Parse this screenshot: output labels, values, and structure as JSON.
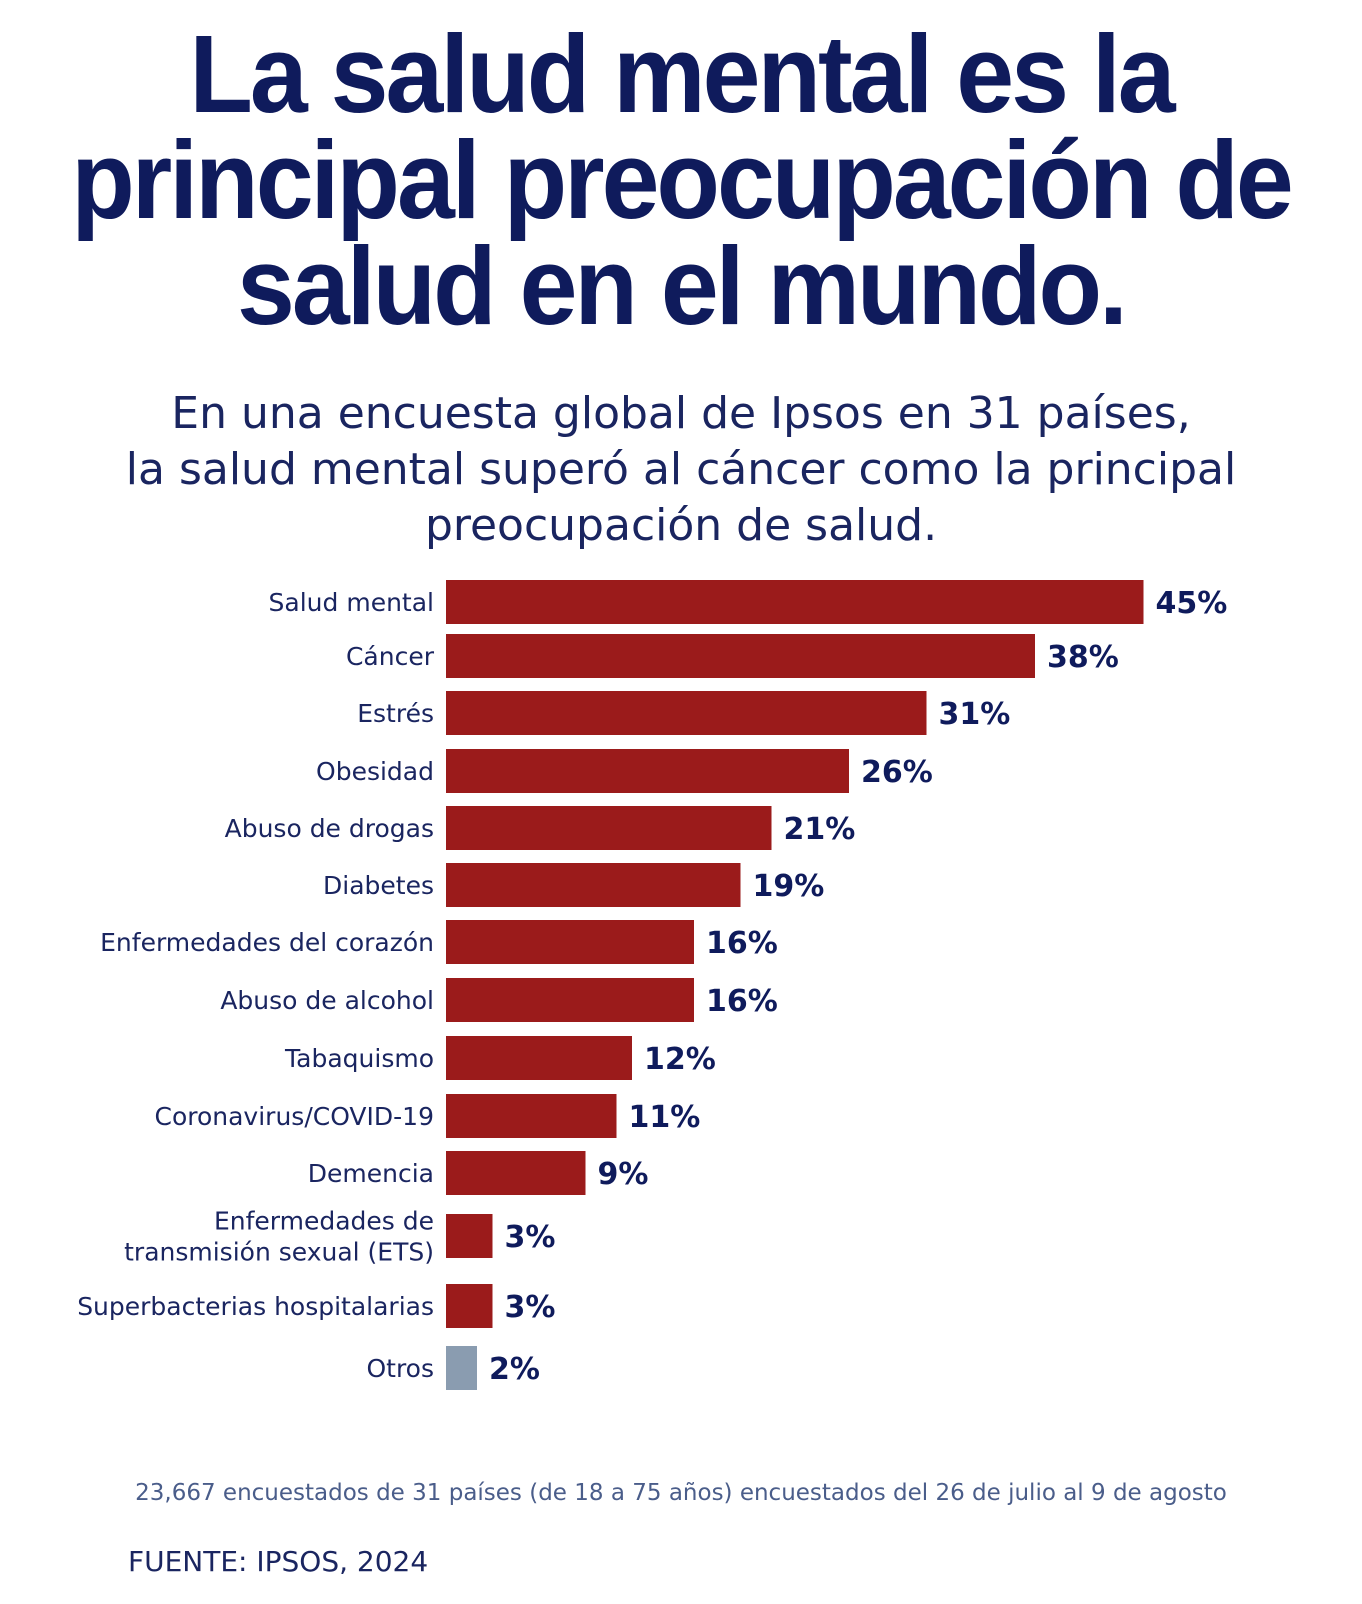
{
  "header": {
    "title_lines": [
      "La salud mental es la",
      "principal preocupación de",
      "salud en el mundo."
    ],
    "subtitle_lines": [
      "En una encuesta global de Ipsos en 31 países,",
      "la salud mental superó al cáncer como la principal",
      "preocupación de salud."
    ]
  },
  "chart_data": {
    "type": "bar",
    "orientation": "horizontal",
    "categories": [
      [
        "Salud mental"
      ],
      [
        "Cáncer"
      ],
      [
        "Estrés"
      ],
      [
        "Obesidad"
      ],
      [
        "Abuso de drogas"
      ],
      [
        "Diabetes"
      ],
      [
        "Enfermedades del corazón"
      ],
      [
        "Abuso de alcohol"
      ],
      [
        "Tabaquismo"
      ],
      [
        "Coronavirus/COVID-19"
      ],
      [
        "Demencia"
      ],
      [
        "Enfermedades de",
        "transmisión sexual (ETS)"
      ],
      [
        "Superbacterias hospitalarias"
      ],
      [
        "Otros"
      ]
    ],
    "values": [
      45,
      38,
      31,
      26,
      21,
      19,
      16,
      16,
      12,
      11,
      9,
      3,
      3,
      2
    ],
    "value_labels": [
      "45%",
      "38%",
      "31%",
      "26%",
      "21%",
      "19%",
      "16%",
      "16%",
      "12%",
      "11%",
      "9%",
      "3%",
      "3%",
      "2%"
    ],
    "colors": {
      "bar": "#9b1b1b",
      "bar_other": "#8a9cb0",
      "label": "#0f1b5c"
    }
  },
  "footer": {
    "note": "23,667 encuestados de 31 países (de 18 a 75 años) encuestados del 26 de julio al 9 de agosto",
    "source": "FUENTE: IPSOS, 2024"
  }
}
